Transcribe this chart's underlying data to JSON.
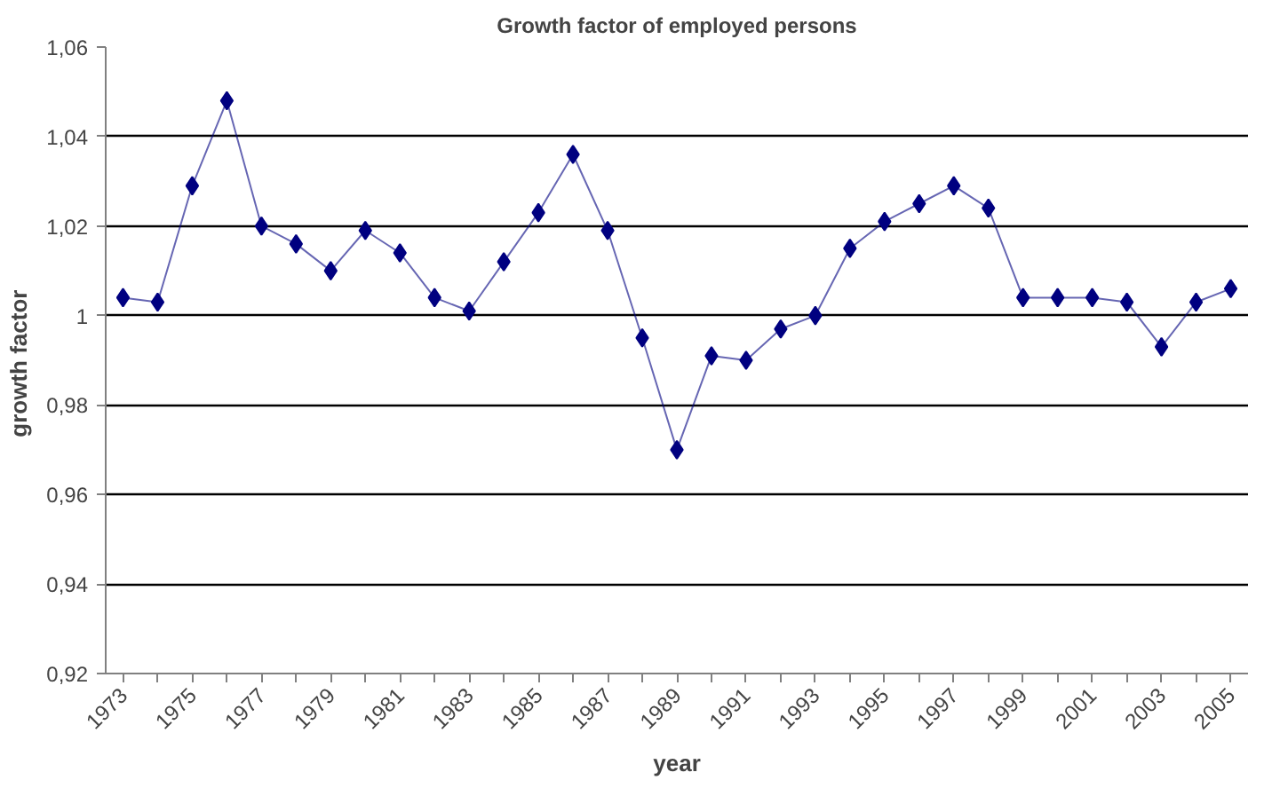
{
  "chart_data": {
    "type": "line",
    "title": "Growth factor of employed persons",
    "xlabel": "year",
    "ylabel": "growth  factor",
    "categories": [
      "1973",
      null,
      "1975",
      null,
      "1977",
      null,
      "1979",
      null,
      "1981",
      null,
      "1983",
      null,
      "1985",
      null,
      "1987",
      null,
      "1989",
      null,
      "1991",
      null,
      "1993",
      null,
      "1995",
      null,
      "1997",
      null,
      "1999",
      null,
      "2001",
      null,
      "2003",
      null,
      "2005"
    ],
    "series": [
      {
        "color": "#000080",
        "values": [
          1.004,
          1.003,
          1.029,
          1.048,
          1.02,
          1.016,
          1.01,
          1.019,
          1.014,
          1.004,
          1.001,
          1.012,
          1.023,
          1.036,
          1.019,
          0.995,
          0.97,
          0.991,
          0.99,
          0.997,
          1.0,
          1.015,
          1.021,
          1.025,
          1.029,
          1.024,
          1.004,
          1.004,
          1.004,
          1.003,
          0.993,
          1.003,
          1.006
        ]
      }
    ],
    "ylim": [
      0.92,
      1.06
    ],
    "yticks": [
      {
        "value": 0.92,
        "label": "0,92"
      },
      {
        "value": 0.94,
        "label": "0,94"
      },
      {
        "value": 0.96,
        "label": "0,96"
      },
      {
        "value": 0.98,
        "label": "0,98"
      },
      1,
      {
        "value": 1.02,
        "label": "1,02"
      },
      {
        "value": 1.04,
        "label": "1,04"
      },
      {
        "value": 1.06,
        "label": "1,06"
      }
    ],
    "grid": "y",
    "marker": "diamond",
    "line_style": "solid"
  }
}
